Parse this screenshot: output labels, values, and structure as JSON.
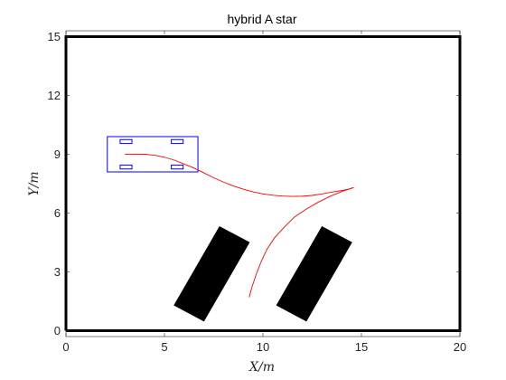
{
  "chart_data": {
    "type": "line",
    "title": "hybrid A star",
    "xlabel": "X/m",
    "ylabel": "Y/m",
    "xlim": [
      0,
      20
    ],
    "ylim": [
      -0.3,
      15.3
    ],
    "xticks": [
      0,
      5,
      10,
      15,
      20
    ],
    "yticks": [
      0,
      3,
      6,
      9,
      12,
      15
    ],
    "grid": false,
    "boundary": {
      "x": [
        0,
        20,
        20,
        0,
        0
      ],
      "y": [
        0,
        0,
        15,
        15,
        0
      ],
      "color": "#000000"
    },
    "obstacles": [
      {
        "name": "obstacle-left",
        "points": [
          [
            5.5,
            1.3
          ],
          [
            7.8,
            5.3
          ],
          [
            9.3,
            4.5
          ],
          [
            7.0,
            0.5
          ]
        ],
        "color": "#000000"
      },
      {
        "name": "obstacle-right",
        "points": [
          [
            10.7,
            1.3
          ],
          [
            13.0,
            5.3
          ],
          [
            14.5,
            4.5
          ],
          [
            12.2,
            0.5
          ]
        ],
        "color": "#000000"
      }
    ],
    "vehicle": {
      "body": {
        "xmin": 2.1,
        "xmax": 6.7,
        "ymin": 8.1,
        "ymax": 9.9
      },
      "wheels": [
        {
          "xmin": 2.75,
          "xmax": 3.35,
          "ymin": 9.55,
          "ymax": 9.75
        },
        {
          "xmin": 5.35,
          "xmax": 5.95,
          "ymin": 9.55,
          "ymax": 9.75
        },
        {
          "xmin": 2.75,
          "xmax": 3.35,
          "ymin": 8.25,
          "ymax": 8.45
        },
        {
          "xmin": 5.35,
          "xmax": 5.95,
          "ymin": 8.25,
          "ymax": 8.45
        }
      ],
      "color": "#0000ff"
    },
    "series": [
      {
        "color": "#ff0000",
        "x": [
          3.0,
          3.5,
          4.0,
          4.5,
          5.0,
          5.5,
          6.0,
          6.5,
          7.0,
          7.5,
          8.0,
          8.5,
          9.0,
          9.5,
          10.0,
          10.5,
          11.0,
          11.5,
          12.0,
          12.5,
          13.0,
          13.5,
          14.0,
          14.4,
          14.6
        ],
        "y": [
          9.0,
          9.01,
          9.0,
          8.95,
          8.85,
          8.7,
          8.5,
          8.3,
          8.05,
          7.8,
          7.58,
          7.38,
          7.22,
          7.08,
          6.98,
          6.91,
          6.87,
          6.85,
          6.86,
          6.9,
          6.98,
          7.07,
          7.15,
          7.23,
          7.3
        ]
      },
      {
        "color": "#ff0000",
        "x": [
          14.6,
          14.0,
          13.4,
          12.8,
          12.2,
          11.6,
          11.1,
          10.6,
          10.2,
          9.9,
          9.65,
          9.45,
          9.3
        ],
        "y": [
          7.3,
          7.1,
          6.85,
          6.55,
          6.2,
          5.8,
          5.3,
          4.75,
          4.15,
          3.5,
          2.85,
          2.25,
          1.7
        ]
      }
    ]
  }
}
